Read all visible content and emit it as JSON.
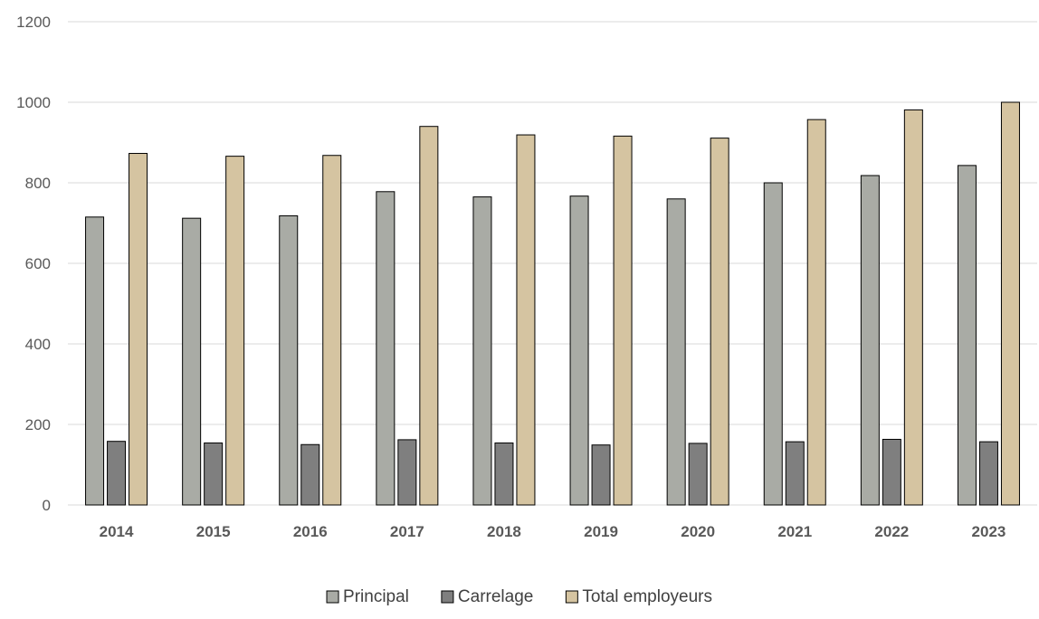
{
  "chart_data": {
    "type": "bar",
    "title": "",
    "xlabel": "",
    "ylabel": "",
    "ylim": [
      0,
      1200
    ],
    "yticks": [
      0,
      200,
      400,
      600,
      800,
      1000,
      1200
    ],
    "grid": true,
    "legend_position": "bottom-center",
    "categories": [
      "2014",
      "2015",
      "2016",
      "2017",
      "2018",
      "2019",
      "2020",
      "2021",
      "2022",
      "2023"
    ],
    "series": [
      {
        "name": "Principal",
        "color": "#a9aba5",
        "values": [
          715,
          712,
          718,
          778,
          765,
          767,
          760,
          800,
          818,
          843
        ]
      },
      {
        "name": "Carrelage",
        "color": "#7f7f7f",
        "values": [
          158,
          154,
          150,
          162,
          154,
          149,
          153,
          157,
          163,
          157
        ]
      },
      {
        "name": "Total employeurs",
        "color": "#d5c4a1",
        "values": [
          873,
          866,
          868,
          940,
          919,
          916,
          911,
          957,
          981,
          1000
        ]
      }
    ]
  }
}
